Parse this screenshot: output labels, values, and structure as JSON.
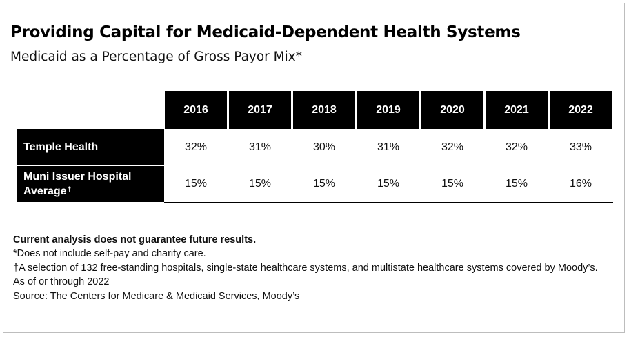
{
  "chart_data": {
    "type": "table",
    "title": "Providing Capital for Medicaid-Dependent Health Systems",
    "subtitle": "Medicaid as a Percentage of Gross Payor Mix*",
    "columns": [
      "2016",
      "2017",
      "2018",
      "2019",
      "2020",
      "2021",
      "2022"
    ],
    "rows": [
      {
        "label": "Temple Health",
        "label_mark": "",
        "values": [
          "32%",
          "31%",
          "30%",
          "31%",
          "32%",
          "32%",
          "33%"
        ]
      },
      {
        "label": "Muni Issuer Hospital Average",
        "label_mark": "†",
        "values": [
          "15%",
          "15%",
          "15%",
          "15%",
          "15%",
          "15%",
          "16%"
        ]
      }
    ]
  },
  "notes": {
    "disclaimer": "Current analysis does not guarantee future results.",
    "footnote_1": "*Does not include self-pay and charity care.",
    "footnote_2": "†A selection of 132 free-standing hospitals, single-state healthcare systems, and multistate healthcare systems covered by Moody’s.",
    "as_of": "As of or through 2022",
    "source": "Source: The Centers for Medicare & Medicaid Services, Moody’s"
  }
}
